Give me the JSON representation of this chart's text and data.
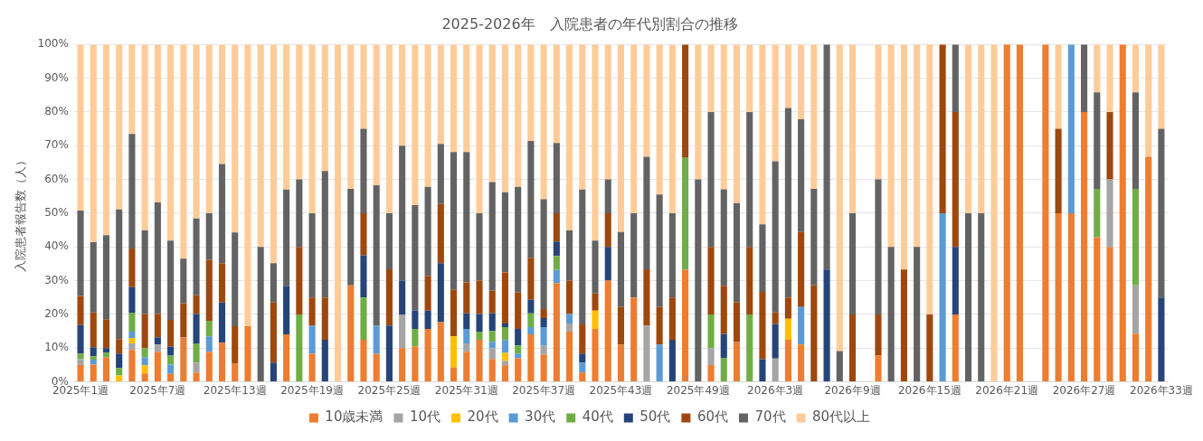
{
  "chart_data": {
    "type": "bar",
    "stacked": true,
    "title": "2025-2026年　入院患者の年代別割合の推移",
    "ylabel": "入院患者報告数（人）",
    "categories": [
      "2025年1週",
      null,
      null,
      null,
      null,
      null,
      "2025年7週",
      null,
      null,
      null,
      null,
      null,
      "2025年13週",
      null,
      null,
      null,
      null,
      null,
      "2025年19週",
      null,
      null,
      null,
      null,
      null,
      "2025年25週",
      null,
      null,
      null,
      null,
      null,
      "2025年31週",
      null,
      null,
      null,
      null,
      null,
      "2025年37週",
      null,
      null,
      null,
      null,
      null,
      "2025年43週",
      null,
      null,
      null,
      null,
      null,
      "2025年49週",
      null,
      null,
      null,
      null,
      null,
      "2026年3週",
      null,
      null,
      null,
      null,
      null,
      "2026年9週",
      null,
      null,
      null,
      null,
      null,
      "2026年15週",
      null,
      null,
      null,
      null,
      null,
      "2026年21週",
      null,
      null,
      null,
      null,
      null,
      "2026年27週",
      null,
      null,
      null,
      null,
      null,
      "2026年33週"
    ],
    "ylim": [
      0,
      100
    ],
    "yticks": [
      {
        "value": 0,
        "label": "0%"
      },
      {
        "value": 10,
        "label": "10%"
      },
      {
        "value": 20,
        "label": "20%"
      },
      {
        "value": 30,
        "label": "30%"
      },
      {
        "value": 40,
        "label": "40%"
      },
      {
        "value": 50,
        "label": "50%"
      },
      {
        "value": 60,
        "label": "60%"
      },
      {
        "value": 70,
        "label": "70%"
      },
      {
        "value": 80,
        "label": "80%"
      },
      {
        "value": 90,
        "label": "90%"
      },
      {
        "value": 100,
        "label": "100%"
      }
    ],
    "grid": "y",
    "legend": "bottom",
    "series": [
      {
        "name": "10歳未満",
        "color": "#ed7d31",
        "values": [
          5,
          5.1,
          7.3,
          0,
          9.5,
          2.5,
          8.9,
          2.4,
          13.2,
          2.8,
          8.9,
          11.6,
          5.4,
          16.5,
          0,
          0,
          14.1,
          0,
          8.3,
          0,
          0,
          28.6,
          12.5,
          8.3,
          0,
          10,
          10.5,
          15.7,
          17.7,
          4.3,
          8.9,
          12.5,
          6.8,
          4.9,
          7,
          14.1,
          8.1,
          29.3,
          14.9,
          2.8,
          15.7,
          30,
          11.1,
          25,
          0,
          0,
          0,
          33.3,
          0,
          5,
          0,
          11.8,
          0,
          0,
          0,
          12.5,
          11.1,
          0,
          0,
          0,
          0,
          null,
          7.8,
          0,
          0,
          0,
          0,
          0,
          20,
          0,
          0,
          0,
          100,
          100,
          null,
          100,
          50,
          50,
          80,
          42.9,
          40,
          100,
          14.3,
          66.7,
          0
        ]
      },
      {
        "name": "10代",
        "color": "#a5a5a5",
        "values": [
          1.8,
          0,
          0,
          0,
          1.9,
          0,
          2.2,
          0,
          0,
          2.9,
          0,
          0,
          0,
          0,
          0,
          0,
          0,
          0,
          0,
          0,
          0,
          0,
          0,
          0,
          0,
          10,
          0,
          0,
          0,
          0,
          2.5,
          0,
          3.2,
          1.3,
          0,
          0,
          2.7,
          0,
          2.4,
          0,
          0,
          0,
          0,
          0,
          16.7,
          0,
          0,
          0,
          0,
          5,
          0,
          0,
          0,
          0,
          6.9,
          0,
          0,
          0,
          0,
          0,
          0,
          null,
          0,
          0,
          0,
          0,
          0,
          0,
          0,
          0,
          0,
          0,
          0,
          0,
          null,
          0,
          0,
          0,
          0,
          0,
          20,
          0,
          14.3,
          0,
          0
        ]
      },
      {
        "name": "20代",
        "color": "#ffc000",
        "values": [
          0,
          0,
          0,
          1.9,
          1.6,
          2.4,
          0,
          0,
          0,
          0,
          0,
          0,
          0,
          0,
          0,
          0,
          0,
          0,
          0,
          0,
          0,
          0,
          0,
          0,
          0,
          0,
          0,
          0,
          0,
          9.2,
          0,
          0,
          0,
          2.4,
          0,
          0,
          0,
          0,
          0,
          0,
          5.4,
          0,
          0,
          0,
          0,
          0,
          0,
          0,
          0,
          0,
          0,
          0,
          0,
          0,
          0,
          6.2,
          0,
          0,
          0,
          0,
          0,
          null,
          0,
          0,
          0,
          0,
          0,
          0,
          0,
          0,
          0,
          0,
          0,
          0,
          null,
          0,
          0,
          0,
          0,
          0,
          0,
          0,
          0,
          0,
          0
        ]
      },
      {
        "name": "30代",
        "color": "#5b9bd5",
        "values": [
          0,
          1.5,
          0,
          0,
          1.9,
          2.4,
          0,
          2.7,
          0,
          0,
          4.6,
          0,
          0,
          0,
          0,
          0,
          0,
          0,
          8.3,
          0,
          0,
          0,
          0,
          8.3,
          0,
          0,
          0,
          0,
          0,
          0,
          4.3,
          0,
          1.9,
          3.8,
          1.4,
          2.1,
          5.4,
          3.9,
          2.8,
          2.9,
          0,
          0,
          0,
          0,
          0,
          11.1,
          0,
          0,
          0,
          0,
          0,
          0,
          0,
          0,
          0,
          0,
          11.1,
          0,
          0,
          0,
          0,
          null,
          0,
          0,
          0,
          0,
          0,
          50,
          0,
          0,
          0,
          0,
          0,
          0,
          null,
          0,
          0,
          50,
          0,
          0,
          0,
          0,
          0,
          0,
          0
        ]
      },
      {
        "name": "40代",
        "color": "#70ad47",
        "values": [
          1.6,
          1,
          1.3,
          2.2,
          5.6,
          2.7,
          0,
          2.7,
          0,
          5.7,
          4.6,
          0,
          0,
          0,
          0,
          0,
          0,
          20,
          0,
          0,
          0,
          0,
          12.5,
          0,
          0,
          0,
          5.2,
          0,
          0,
          0,
          0,
          2.4,
          3.2,
          3.8,
          2.4,
          4.1,
          0,
          4.1,
          0,
          0,
          0,
          0,
          0,
          0,
          0,
          0,
          0,
          33.3,
          0,
          10,
          7.1,
          0,
          20,
          0,
          0,
          0,
          0,
          0,
          0,
          0,
          0,
          null,
          0,
          0,
          0,
          0,
          0,
          0,
          0,
          0,
          0,
          0,
          0,
          0,
          null,
          0,
          0,
          0,
          0,
          14.3,
          0,
          0,
          28.6,
          0,
          0
        ]
      },
      {
        "name": "50代",
        "color": "#264478",
        "values": [
          8.4,
          2.7,
          1.4,
          4.3,
          7.6,
          0,
          2.1,
          2.7,
          0,
          8.7,
          0,
          11.9,
          0,
          0,
          0,
          5.7,
          14.3,
          0,
          0,
          12.5,
          0,
          0,
          12.5,
          0,
          16.7,
          10,
          5.4,
          5.4,
          17.5,
          0,
          4.6,
          5.2,
          5.2,
          1.1,
          4.9,
          4,
          2.7,
          4.3,
          0,
          2.7,
          0,
          10,
          0,
          0,
          0,
          0,
          12.5,
          0,
          0,
          0,
          7.1,
          0,
          0,
          6.7,
          10.3,
          0,
          0,
          0,
          33.3,
          0,
          0,
          null,
          0,
          0,
          0,
          0,
          0,
          0,
          20,
          0,
          0,
          0,
          0,
          0,
          null,
          0,
          0,
          0,
          0,
          0,
          0,
          0,
          0,
          0,
          25
        ]
      },
      {
        "name": "60代",
        "color": "#9e480e",
        "values": [
          8.7,
          10.3,
          8.6,
          4.3,
          11.4,
          10.1,
          6.9,
          7.9,
          10.1,
          5.6,
          18.1,
          11.7,
          11.1,
          0,
          0,
          17.8,
          0,
          20,
          8.4,
          12.5,
          0,
          0,
          12.5,
          0,
          16.7,
          0,
          0,
          10.3,
          17.5,
          13.8,
          9.2,
          9.9,
          6.7,
          15.1,
          10.8,
          12.5,
          2.7,
          8.4,
          9.9,
          8.6,
          5.1,
          10,
          11.1,
          0,
          16.7,
          11.1,
          12.5,
          33.4,
          0,
          20,
          14.3,
          11.8,
          20,
          20,
          3.4,
          6.3,
          22.2,
          28.6,
          0,
          0,
          20,
          null,
          12.2,
          0,
          33.3,
          0,
          20,
          50,
          40,
          0,
          0,
          0,
          0,
          0,
          null,
          0,
          25,
          0,
          0,
          0,
          20,
          0,
          0,
          0,
          0
        ]
      },
      {
        "name": "70代",
        "color": "#636363",
        "values": [
          25.3,
          20.8,
          24.9,
          38.4,
          34,
          24.8,
          33.1,
          23.5,
          13.2,
          22.7,
          13.8,
          29.4,
          27.8,
          0,
          40,
          11.7,
          28.6,
          20,
          25,
          37.5,
          0,
          28.6,
          25,
          41.7,
          16.6,
          40,
          31.3,
          26.4,
          17.8,
          40.8,
          38.6,
          20,
          32.2,
          23.8,
          31.3,
          34.6,
          32.5,
          20.8,
          14.9,
          40,
          15.7,
          10,
          22.2,
          25,
          33.3,
          33.3,
          25,
          0,
          60,
          40,
          28.6,
          29.4,
          40,
          20,
          44.8,
          56.2,
          33.4,
          28.6,
          66.7,
          9.1,
          30,
          null,
          40,
          40,
          0,
          40,
          0,
          0,
          20,
          50,
          50,
          0,
          0,
          0,
          null,
          0,
          0,
          0,
          20,
          28.6,
          0,
          0,
          28.6,
          0,
          50
        ]
      },
      {
        "name": "80代以上",
        "color": "#ffcc99",
        "values": [
          49.2,
          58.6,
          56.5,
          48.9,
          26.5,
          55.1,
          46.8,
          58.1,
          63.5,
          51.6,
          50,
          35.4,
          55.7,
          83.5,
          60,
          64.8,
          43,
          40,
          50,
          37.5,
          100,
          42.8,
          25,
          41.7,
          50,
          30,
          47.6,
          42.2,
          29.5,
          31.9,
          31.9,
          50,
          40.8,
          43.8,
          42.2,
          28.6,
          45.9,
          29.2,
          55.1,
          43,
          58.1,
          40,
          55.6,
          50,
          33.3,
          44.5,
          50,
          0,
          40,
          20,
          42.9,
          47,
          20,
          53.3,
          34.6,
          18.8,
          22.2,
          42.8,
          0,
          90.9,
          50,
          null,
          40,
          60,
          66.7,
          60,
          80,
          0,
          0,
          50,
          50,
          100,
          0,
          0,
          null,
          0,
          25,
          0,
          0,
          14.2,
          20,
          0,
          14.2,
          33.3,
          25
        ]
      }
    ]
  }
}
